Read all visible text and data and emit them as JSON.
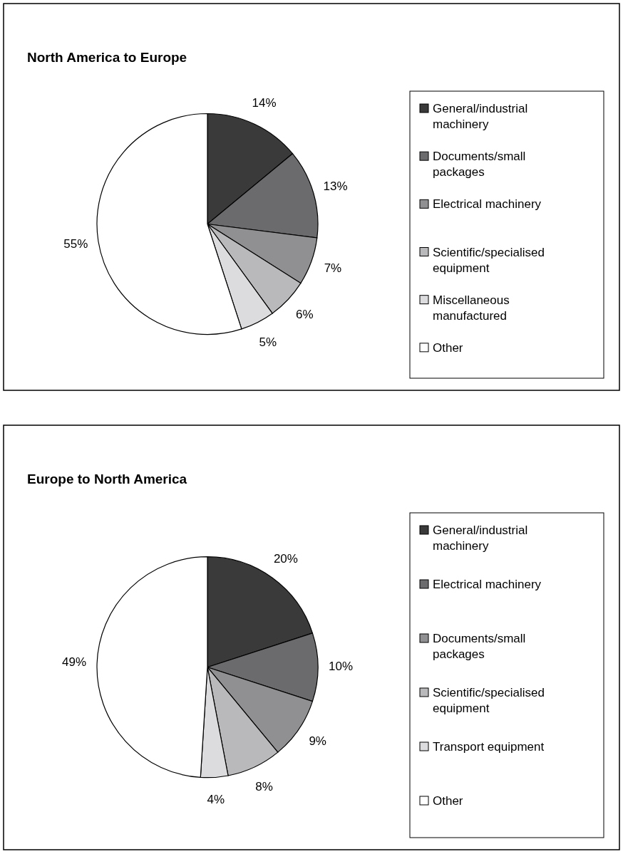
{
  "chart_data": [
    {
      "type": "pie",
      "title": "North America to Europe",
      "categories": [
        "General/industrial machinery",
        "Documents/small packages",
        "Electrical machinery",
        "Scientific/specialised equipment",
        "Miscellaneous manufactured",
        "Other"
      ],
      "values": [
        14,
        13,
        7,
        6,
        5,
        55
      ],
      "value_labels": [
        "14%",
        "13%",
        "7%",
        "6%",
        "5%",
        "55%"
      ],
      "colors": [
        "#3a3a3a",
        "#6b6b6e",
        "#909092",
        "#b9b9bb",
        "#dcdcde",
        "#ffffff"
      ],
      "legend": "right"
    },
    {
      "type": "pie",
      "title": "Europe to North America",
      "categories": [
        "General/industrial machinery",
        "Electrical machinery",
        "Documents/small packages",
        "Scientific/specialised equipment",
        "Transport equipment",
        "Other"
      ],
      "values": [
        20,
        10,
        9,
        8,
        4,
        49
      ],
      "value_labels": [
        "20%",
        "10%",
        "9%",
        "8%",
        "4%",
        "49%"
      ],
      "colors": [
        "#3a3a3a",
        "#6b6b6e",
        "#909092",
        "#b9b9bb",
        "#dcdcde",
        "#ffffff"
      ],
      "legend": "right"
    }
  ]
}
